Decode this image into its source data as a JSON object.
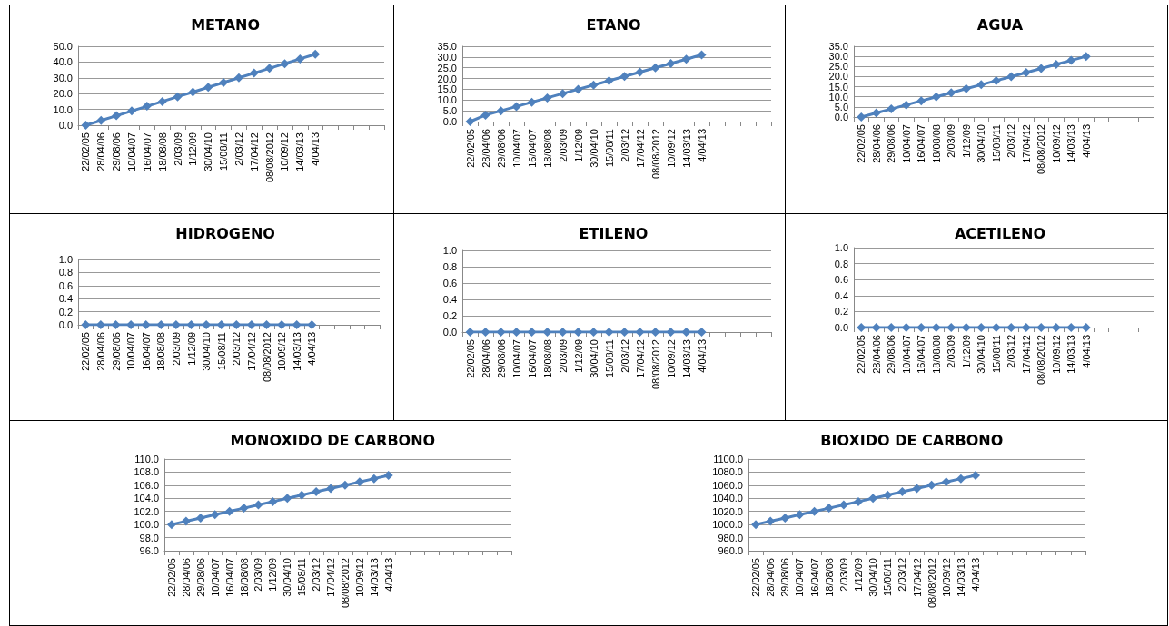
{
  "chart_data": [
    {
      "type": "line",
      "title": "METANO",
      "categories": [
        "22/02/05",
        "28/04/06",
        "29/08/06",
        "10/04/07",
        "16/04/07",
        "18/08/08",
        "2/03/09",
        "1/12/09",
        "30/04/10",
        "15/08/11",
        "2/03/12",
        "17/04/12",
        "08/08/2012",
        "10/09/12",
        "14/03/13",
        "4/04/13",
        null,
        null,
        null,
        null
      ],
      "series": [
        {
          "color": "#4f81bd",
          "values": [
            0,
            3,
            6,
            9,
            12,
            15,
            18,
            21,
            24,
            27,
            30,
            33,
            36,
            39,
            42,
            45,
            null,
            null,
            null,
            null
          ]
        }
      ],
      "ylim": [
        0,
        50
      ],
      "yticks": [
        {
          "value": 0,
          "label": "0.0"
        },
        {
          "value": 10,
          "label": "10.0"
        },
        {
          "value": 20,
          "label": "20.0"
        },
        {
          "value": 30,
          "label": "30.0"
        },
        {
          "value": 40,
          "label": "40.0"
        },
        {
          "value": 50,
          "label": "50.0"
        }
      ],
      "grid": "y",
      "marker": "diamond",
      "line_style": "solid"
    },
    {
      "type": "line",
      "title": "ETANO",
      "categories": [
        "22/02/05",
        "28/04/06",
        "29/08/06",
        "10/04/07",
        "16/04/07",
        "18/08/08",
        "2/03/09",
        "1/12/09",
        "30/04/10",
        "15/08/11",
        "2/03/12",
        "17/04/12",
        "08/08/2012",
        "10/09/12",
        "14/03/13",
        "4/04/13",
        null,
        null,
        null,
        null
      ],
      "series": [
        {
          "color": "#4f81bd",
          "values": [
            0,
            3,
            5,
            7,
            9,
            11,
            13,
            15,
            17,
            19,
            21,
            23,
            25,
            27,
            29,
            31,
            null,
            null,
            null,
            null
          ]
        }
      ],
      "ylim": [
        0,
        35
      ],
      "yticks": [
        {
          "value": 0,
          "label": "0.0"
        },
        {
          "value": 5,
          "label": "5.0"
        },
        {
          "value": 10,
          "label": "10.0"
        },
        {
          "value": 15,
          "label": "15.0"
        },
        {
          "value": 20,
          "label": "20.0"
        },
        {
          "value": 25,
          "label": "25.0"
        },
        {
          "value": 30,
          "label": "30.0"
        },
        {
          "value": 35,
          "label": "35.0"
        }
      ],
      "grid": "y",
      "marker": "diamond",
      "line_style": "solid"
    },
    {
      "type": "line",
      "title": "AGUA",
      "categories": [
        "22/02/05",
        "28/04/06",
        "29/08/06",
        "10/04/07",
        "16/04/07",
        "18/08/08",
        "2/03/09",
        "1/12/09",
        "30/04/10",
        "15/08/11",
        "2/03/12",
        "17/04/12",
        "08/08/2012",
        "10/09/12",
        "14/03/13",
        "4/04/13",
        null,
        null,
        null,
        null
      ],
      "series": [
        {
          "color": "#4f81bd",
          "values": [
            0,
            2,
            4,
            6,
            8,
            10,
            12,
            14,
            16,
            18,
            20,
            22,
            24,
            26,
            28,
            30,
            null,
            null,
            null,
            null
          ]
        }
      ],
      "ylim": [
        0,
        35
      ],
      "yticks": [
        {
          "value": 0,
          "label": "0.0"
        },
        {
          "value": 5,
          "label": "5.0"
        },
        {
          "value": 10,
          "label": "10.0"
        },
        {
          "value": 15,
          "label": "15.0"
        },
        {
          "value": 20,
          "label": "20.0"
        },
        {
          "value": 25,
          "label": "25.0"
        },
        {
          "value": 30,
          "label": "30.0"
        },
        {
          "value": 35,
          "label": "35.0"
        }
      ],
      "grid": "y",
      "marker": "diamond",
      "line_style": "solid"
    },
    {
      "type": "line",
      "title": "HIDROGENO",
      "categories": [
        "22/02/05",
        "28/04/06",
        "29/08/06",
        "10/04/07",
        "16/04/07",
        "18/08/08",
        "2/03/09",
        "1/12/09",
        "30/04/10",
        "15/08/11",
        "2/03/12",
        "17/04/12",
        "08/08/2012",
        "10/09/12",
        "14/03/13",
        "4/04/13",
        null,
        null,
        null,
        null
      ],
      "series": [
        {
          "color": "#4f81bd",
          "values": [
            0,
            0,
            0,
            0,
            0,
            0,
            0,
            0,
            0,
            0,
            0,
            0,
            0,
            0,
            0,
            0,
            null,
            null,
            null,
            null
          ]
        }
      ],
      "ylim": [
        0,
        1
      ],
      "yticks": [
        {
          "value": 0,
          "label": "0.0"
        },
        {
          "value": 0.2,
          "label": "0.2"
        },
        {
          "value": 0.4,
          "label": "0.4"
        },
        {
          "value": 0.6,
          "label": "0.6"
        },
        {
          "value": 0.8,
          "label": "0.8"
        },
        {
          "value": 1,
          "label": "1.0"
        }
      ],
      "grid": "y",
      "marker": "diamond",
      "line_style": "solid"
    },
    {
      "type": "line",
      "title": "ETILENO",
      "categories": [
        "22/02/05",
        "28/04/06",
        "29/08/06",
        "10/04/07",
        "16/04/07",
        "18/08/08",
        "2/03/09",
        "1/12/09",
        "30/04/10",
        "15/08/11",
        "2/03/12",
        "17/04/12",
        "08/08/2012",
        "10/09/12",
        "14/03/13",
        "4/04/13",
        null,
        null,
        null,
        null
      ],
      "series": [
        {
          "color": "#4f81bd",
          "values": [
            0,
            0,
            0,
            0,
            0,
            0,
            0,
            0,
            0,
            0,
            0,
            0,
            0,
            0,
            0,
            0,
            null,
            null,
            null,
            null
          ]
        }
      ],
      "ylim": [
        0,
        1
      ],
      "yticks": [
        {
          "value": 0,
          "label": "0.0"
        },
        {
          "value": 0.2,
          "label": "0.2"
        },
        {
          "value": 0.4,
          "label": "0.4"
        },
        {
          "value": 0.6,
          "label": "0.6"
        },
        {
          "value": 0.8,
          "label": "0.8"
        },
        {
          "value": 1,
          "label": "1.0"
        }
      ],
      "grid": "y",
      "marker": "diamond",
      "line_style": "solid"
    },
    {
      "type": "line",
      "title": "ACETILENO",
      "categories": [
        "22/02/05",
        "28/04/06",
        "29/08/06",
        "10/04/07",
        "16/04/07",
        "18/08/08",
        "2/03/09",
        "1/12/09",
        "30/04/10",
        "15/08/11",
        "2/03/12",
        "17/04/12",
        "08/08/2012",
        "10/09/12",
        "14/03/13",
        "4/04/13",
        null,
        null,
        null,
        null
      ],
      "series": [
        {
          "color": "#4f81bd",
          "values": [
            0,
            0,
            0,
            0,
            0,
            0,
            0,
            0,
            0,
            0,
            0,
            0,
            0,
            0,
            0,
            0,
            null,
            null,
            null,
            null
          ]
        }
      ],
      "ylim": [
        0,
        1
      ],
      "yticks": [
        {
          "value": 0,
          "label": "0.0"
        },
        {
          "value": 0.2,
          "label": "0.2"
        },
        {
          "value": 0.4,
          "label": "0.4"
        },
        {
          "value": 0.6,
          "label": "0.6"
        },
        {
          "value": 0.8,
          "label": "0.8"
        },
        {
          "value": 1,
          "label": "1.0"
        }
      ],
      "grid": "y",
      "marker": "diamond",
      "line_style": "solid"
    },
    {
      "type": "line",
      "title": "MONOXIDO DE CARBONO",
      "categories": [
        "22/02/05",
        "28/04/06",
        "29/08/06",
        "10/04/07",
        "16/04/07",
        "18/08/08",
        "2/03/09",
        "1/12/09",
        "30/04/10",
        "15/08/11",
        "2/03/12",
        "17/04/12",
        "08/08/2012",
        "10/09/12",
        "14/03/13",
        "4/04/13",
        null,
        null,
        null,
        null,
        null,
        null,
        null,
        null
      ],
      "series": [
        {
          "color": "#4f81bd",
          "values": [
            100,
            100.5,
            101,
            101.5,
            102,
            102.5,
            103,
            103.5,
            104,
            104.5,
            105,
            105.5,
            106,
            106.5,
            107,
            107.5,
            null,
            null,
            null,
            null,
            null,
            null,
            null,
            null
          ]
        }
      ],
      "ylim": [
        96,
        110
      ],
      "yticks": [
        {
          "value": 96,
          "label": "96.0"
        },
        {
          "value": 98,
          "label": "98.0"
        },
        {
          "value": 100,
          "label": "100.0"
        },
        {
          "value": 102,
          "label": "102.0"
        },
        {
          "value": 104,
          "label": "104.0"
        },
        {
          "value": 106,
          "label": "106.0"
        },
        {
          "value": 108,
          "label": "108.0"
        },
        {
          "value": 110,
          "label": "110.0"
        }
      ],
      "grid": "y",
      "marker": "diamond",
      "line_style": "solid"
    },
    {
      "type": "line",
      "title": "BIOXIDO DE CARBONO",
      "categories": [
        "22/02/05",
        "28/04/06",
        "29/08/06",
        "10/04/07",
        "16/04/07",
        "18/08/08",
        "2/03/09",
        "1/12/09",
        "30/04/10",
        "15/08/11",
        "2/03/12",
        "17/04/12",
        "08/08/2012",
        "10/09/12",
        "14/03/13",
        "4/04/13",
        null,
        null,
        null,
        null,
        null,
        null,
        null
      ],
      "series": [
        {
          "color": "#4f81bd",
          "values": [
            1000,
            1005,
            1010,
            1015,
            1020,
            1025,
            1030,
            1035,
            1040,
            1045,
            1050,
            1055,
            1060,
            1065,
            1070,
            1075,
            null,
            null,
            null,
            null,
            null,
            null,
            null
          ]
        }
      ],
      "ylim": [
        960,
        1100
      ],
      "yticks": [
        {
          "value": 960,
          "label": "960.0"
        },
        {
          "value": 980,
          "label": "980.0"
        },
        {
          "value": 1000,
          "label": "1000.0"
        },
        {
          "value": 1020,
          "label": "1020.0"
        },
        {
          "value": 1040,
          "label": "1040.0"
        },
        {
          "value": 1060,
          "label": "1060.0"
        },
        {
          "value": 1080,
          "label": "1080.0"
        },
        {
          "value": 1100,
          "label": "1100.0"
        }
      ],
      "grid": "y",
      "marker": "diamond",
      "line_style": "solid"
    }
  ]
}
